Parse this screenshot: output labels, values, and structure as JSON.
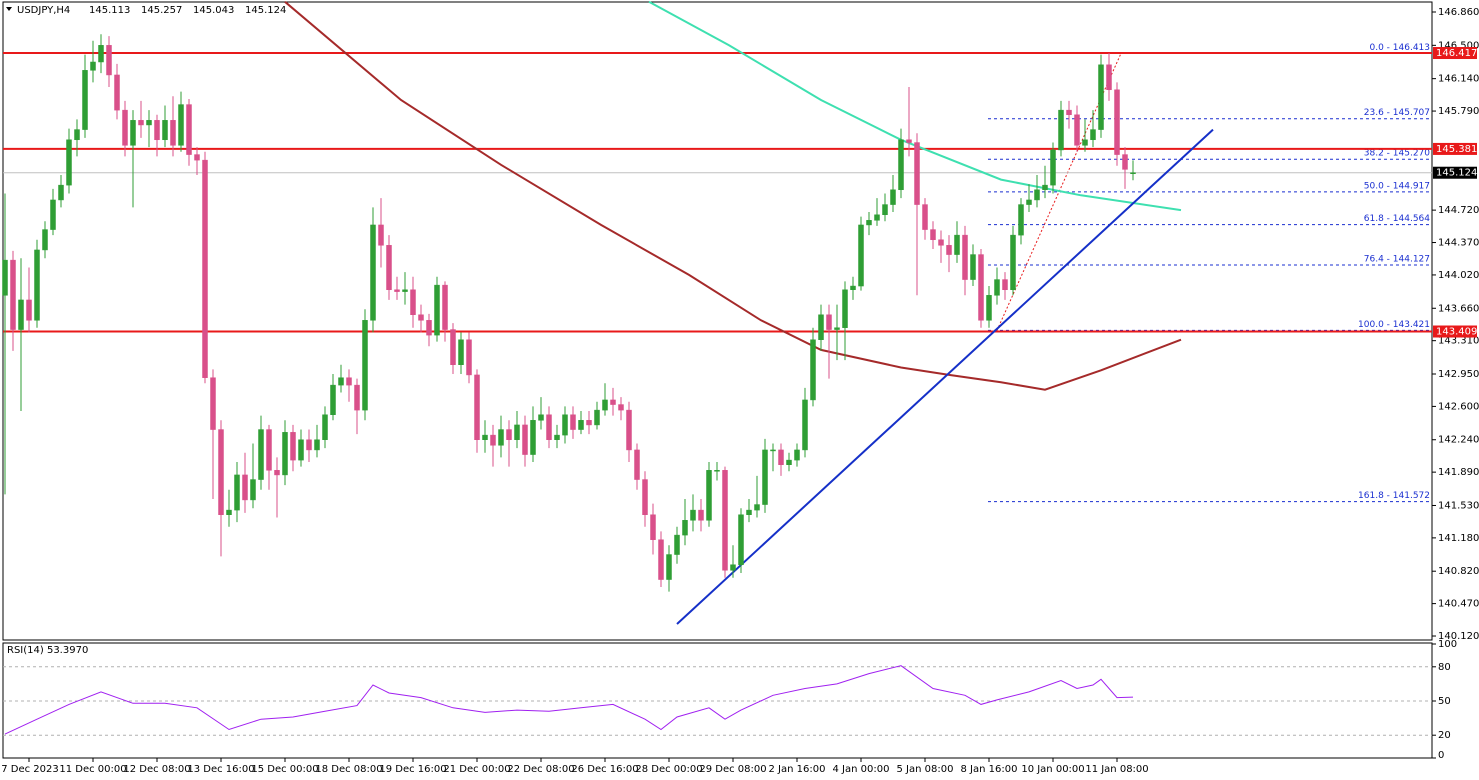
{
  "chart_data": {
    "type": "candlestick",
    "symbol_label": "USDJPY,H4",
    "up_color": "#2f9e35",
    "down_color": "#d9508a",
    "categories": [
      null,
      null,
      null,
      "7 Dec 2023",
      null,
      null,
      null,
      null,
      null,
      null,
      null,
      "11 Dec 00:00",
      null,
      null,
      null,
      null,
      null,
      null,
      null,
      "12 Dec 08:00",
      null,
      null,
      null,
      null,
      null,
      null,
      null,
      "13 Dec 16:00",
      null,
      null,
      null,
      null,
      null,
      null,
      null,
      "15 Dec 00:00",
      null,
      null,
      null,
      null,
      null,
      null,
      null,
      "18 Dec 08:00",
      null,
      null,
      null,
      null,
      null,
      null,
      null,
      "19 Dec 16:00",
      null,
      null,
      null,
      null,
      null,
      null,
      null,
      "21 Dec 00:00",
      null,
      null,
      null,
      null,
      null,
      null,
      null,
      "22 Dec 08:00",
      null,
      null,
      null,
      null,
      null,
      null,
      null,
      "26 Dec 16:00",
      null,
      null,
      null,
      null,
      null,
      null,
      null,
      "28 Dec 00:00",
      null,
      null,
      null,
      null,
      null,
      null,
      null,
      "29 Dec 08:00",
      null,
      null,
      null,
      null,
      null,
      null,
      null,
      "2 Jan 16:00",
      null,
      null,
      null,
      null,
      null,
      null,
      null,
      "4 Jan 00:00",
      null,
      null,
      null,
      null,
      null,
      null,
      null,
      "5 Jan 08:00",
      null,
      null,
      null,
      null,
      null,
      null,
      null,
      "8 Jan 16:00",
      null,
      null,
      null,
      null,
      null,
      null,
      null,
      "10 Jan 00:00",
      null,
      null,
      null,
      null,
      null,
      null,
      null,
      "11 Jan 08:00",
      null,
      null
    ],
    "open": [
      143.8,
      144.18,
      143.43,
      143.75,
      143.53,
      144.29,
      144.51,
      144.83,
      144.99,
      145.48,
      145.59,
      146.23,
      146.32,
      146.5,
      146.18,
      145.8,
      145.42,
      145.69,
      145.64,
      145.69,
      145.48,
      145.69,
      145.42,
      145.86,
      145.32,
      145.26,
      142.91,
      142.35,
      141.43,
      141.48,
      141.86,
      141.59,
      141.81,
      142.35,
      141.91,
      141.86,
      142.32,
      142.02,
      142.24,
      142.13,
      142.24,
      142.51,
      142.83,
      142.91,
      142.83,
      142.56,
      143.53,
      144.56,
      144.34,
      143.86,
      143.84,
      143.86,
      143.59,
      143.53,
      143.37,
      143.91,
      143.43,
      143.05,
      143.32,
      142.94,
      142.24,
      142.29,
      142.18,
      142.35,
      142.24,
      142.4,
      142.08,
      142.45,
      142.51,
      142.24,
      142.29,
      142.51,
      142.35,
      142.45,
      142.4,
      142.56,
      142.67,
      142.62,
      142.56,
      142.13,
      141.81,
      141.43,
      141.16,
      140.73,
      141.0,
      141.21,
      141.37,
      141.48,
      141.37,
      141.91,
      141.91,
      140.83,
      140.89,
      141.43,
      141.48,
      141.54,
      142.13,
      142.13,
      141.97,
      142.02,
      142.13,
      142.67,
      143.32,
      143.59,
      143.43,
      143.45,
      143.86,
      143.9,
      144.56,
      144.61,
      144.67,
      144.78,
      144.94,
      145.48,
      145.45,
      144.78,
      144.51,
      144.4,
      144.34,
      144.24,
      144.45,
      143.97,
      144.24,
      143.53,
      143.8,
      143.97,
      143.86,
      144.45,
      144.78,
      144.83,
      144.94,
      144.99,
      145.37,
      145.8,
      145.75,
      145.42,
      145.48,
      145.59,
      146.29,
      146.02,
      145.32,
      145.113
    ],
    "high": [
      144.9,
      144.28,
      144.2,
      144.1,
      144.4,
      144.6,
      144.95,
      145.1,
      145.6,
      145.7,
      146.4,
      146.55,
      146.62,
      146.6,
      146.3,
      145.9,
      145.8,
      145.9,
      145.8,
      145.75,
      145.85,
      145.95,
      146.0,
      145.92,
      145.4,
      145.35,
      143.0,
      142.45,
      141.7,
      142.0,
      142.1,
      142.2,
      142.5,
      142.4,
      142.05,
      142.45,
      142.4,
      142.35,
      142.35,
      142.4,
      142.6,
      142.95,
      143.05,
      143.0,
      142.9,
      143.65,
      144.75,
      144.85,
      144.45,
      144.0,
      144.05,
      144.0,
      143.7,
      143.6,
      144.0,
      143.95,
      143.5,
      143.4,
      143.4,
      143.0,
      142.45,
      142.4,
      142.5,
      142.45,
      142.55,
      142.5,
      142.6,
      142.7,
      142.6,
      142.4,
      142.6,
      142.6,
      142.55,
      142.55,
      142.65,
      142.85,
      142.8,
      142.7,
      142.65,
      142.2,
      141.9,
      141.55,
      141.25,
      141.1,
      141.3,
      141.6,
      141.65,
      141.6,
      142.0,
      142.0,
      141.95,
      141.1,
      141.5,
      141.6,
      141.85,
      142.25,
      142.2,
      142.2,
      142.1,
      142.2,
      142.8,
      143.45,
      143.7,
      143.7,
      143.7,
      143.95,
      144.0,
      144.65,
      144.7,
      144.85,
      144.9,
      145.1,
      145.6,
      146.05,
      145.55,
      144.85,
      144.6,
      144.5,
      144.45,
      144.6,
      144.55,
      144.35,
      144.3,
      143.9,
      144.1,
      144.05,
      144.55,
      144.85,
      145.0,
      145.1,
      145.2,
      145.45,
      145.9,
      145.9,
      145.85,
      145.7,
      145.8,
      146.4,
      146.417,
      146.1,
      145.4,
      145.257
    ],
    "low": [
      141.65,
      143.2,
      142.55,
      143.4,
      143.45,
      144.2,
      144.45,
      144.75,
      144.9,
      145.3,
      145.5,
      146.1,
      146.2,
      146.05,
      145.7,
      145.3,
      144.75,
      145.5,
      145.4,
      145.3,
      145.4,
      145.3,
      145.35,
      145.2,
      145.1,
      142.85,
      141.6,
      140.98,
      141.3,
      141.35,
      141.45,
      141.5,
      141.7,
      141.7,
      141.4,
      141.75,
      141.9,
      141.95,
      142.0,
      142.05,
      142.15,
      142.45,
      142.75,
      142.65,
      142.3,
      142.45,
      143.4,
      144.1,
      143.75,
      143.75,
      143.7,
      143.45,
      143.4,
      143.25,
      143.3,
      143.3,
      142.95,
      142.95,
      142.85,
      142.1,
      142.1,
      141.95,
      142.05,
      141.95,
      142.15,
      141.95,
      142.0,
      142.35,
      142.15,
      142.15,
      142.2,
      142.25,
      142.3,
      142.3,
      142.35,
      142.5,
      142.5,
      142.45,
      142.0,
      141.7,
      141.3,
      141.0,
      140.65,
      140.6,
      140.9,
      141.1,
      141.25,
      141.25,
      141.3,
      141.8,
      140.75,
      140.75,
      140.8,
      141.35,
      141.4,
      141.45,
      141.9,
      141.85,
      141.9,
      141.95,
      142.05,
      142.6,
      143.2,
      142.9,
      143.1,
      143.1,
      143.75,
      143.85,
      144.45,
      144.55,
      144.6,
      144.7,
      144.85,
      145.3,
      143.8,
      144.4,
      144.3,
      144.15,
      144.05,
      144.15,
      143.8,
      143.9,
      143.45,
      143.45,
      143.7,
      143.75,
      143.8,
      144.35,
      144.7,
      144.75,
      144.85,
      144.9,
      145.3,
      145.6,
      145.35,
      145.35,
      145.4,
      145.5,
      145.9,
      145.2,
      144.95,
      145.043
    ],
    "close": [
      144.18,
      143.43,
      143.75,
      143.53,
      144.29,
      144.51,
      144.83,
      144.99,
      145.48,
      145.59,
      146.23,
      146.32,
      146.5,
      146.18,
      145.8,
      145.42,
      145.69,
      145.64,
      145.69,
      145.48,
      145.69,
      145.42,
      145.86,
      145.32,
      145.26,
      142.91,
      142.35,
      141.43,
      141.48,
      141.86,
      141.59,
      141.81,
      142.35,
      141.91,
      141.86,
      142.32,
      142.02,
      142.24,
      142.13,
      142.24,
      142.51,
      142.83,
      142.91,
      142.83,
      142.56,
      143.53,
      144.56,
      144.34,
      143.86,
      143.84,
      143.86,
      143.59,
      143.53,
      143.37,
      143.91,
      143.43,
      143.05,
      143.32,
      142.94,
      142.24,
      142.29,
      142.18,
      142.35,
      142.24,
      142.4,
      142.08,
      142.45,
      142.51,
      142.24,
      142.29,
      142.51,
      142.35,
      142.45,
      142.4,
      142.56,
      142.67,
      142.62,
      142.56,
      142.13,
      141.81,
      141.43,
      141.16,
      140.73,
      141.0,
      141.21,
      141.37,
      141.48,
      141.37,
      141.91,
      141.91,
      140.83,
      140.89,
      141.43,
      141.48,
      141.54,
      142.13,
      142.13,
      141.97,
      142.02,
      142.13,
      142.67,
      143.32,
      143.59,
      143.43,
      143.45,
      143.86,
      143.9,
      144.56,
      144.61,
      144.67,
      144.78,
      144.94,
      145.48,
      145.45,
      144.78,
      144.51,
      144.4,
      144.34,
      144.24,
      144.45,
      143.97,
      144.24,
      143.53,
      143.8,
      143.97,
      143.86,
      144.45,
      144.78,
      144.83,
      144.94,
      144.99,
      145.37,
      145.8,
      145.75,
      145.42,
      145.48,
      145.59,
      146.29,
      146.02,
      145.32,
      145.16,
      145.124
    ],
    "ylim": [
      140.077,
      146.968
    ],
    "yticks": [
      {
        "value": 146.86,
        "label": "146.860"
      },
      {
        "value": 146.5,
        "label": "146.500"
      },
      {
        "value": 146.14,
        "label": "146.140"
      },
      {
        "value": 145.79,
        "label": "145.790"
      },
      {
        "value": 144.72,
        "label": "144.720"
      },
      {
        "value": 144.37,
        "label": "144.370"
      },
      {
        "value": 144.02,
        "label": "144.020"
      },
      {
        "value": 143.66,
        "label": "143.660"
      },
      {
        "value": 143.31,
        "label": "143.310"
      },
      {
        "value": 142.95,
        "label": "142.950"
      },
      {
        "value": 142.6,
        "label": "142.600"
      },
      {
        "value": 142.24,
        "label": "142.240"
      },
      {
        "value": 141.89,
        "label": "141.890"
      },
      {
        "value": 141.53,
        "label": "141.530"
      },
      {
        "value": 141.18,
        "label": "141.180"
      },
      {
        "value": 140.82,
        "label": "140.820"
      },
      {
        "value": 140.47,
        "label": "140.470"
      },
      {
        "value": 140.12,
        "label": "140.120"
      }
    ],
    "overlays": [
      {
        "type": "line",
        "color": "#a52a2a",
        "x": [
          35,
          49.5,
          62,
          74.5,
          85.5,
          94.5,
          102,
          112,
          118,
          124.5,
          130,
          137,
          147
        ],
        "values": [
          146.97,
          145.91,
          145.21,
          144.56,
          144.02,
          143.53,
          143.21,
          143.02,
          142.94,
          142.86,
          142.78,
          142.99,
          143.32
        ]
      },
      {
        "type": "line",
        "color": "#3ee0b0",
        "x": [
          80.5,
          90.5,
          102,
          112,
          124.5,
          134.5,
          147
        ],
        "values": [
          146.97,
          146.5,
          145.91,
          145.48,
          145.05,
          144.88,
          144.72
        ]
      },
      {
        "type": "line",
        "color": "#1530c8",
        "x": [
          84,
          151
        ],
        "values": [
          140.25,
          145.59
        ]
      }
    ],
    "levels": [
      {
        "value": 146.417,
        "color": "#e8191a"
      },
      {
        "value": 145.381,
        "color": "#e8191a"
      },
      {
        "value": 143.409,
        "color": "#e8191a"
      }
    ],
    "fib_color": "#1a2fd0",
    "fib_levels": [
      {
        "label": "0.0 - 146.413",
        "value": 146.413
      },
      {
        "label": "23.6 - 145.707",
        "value": 145.707
      },
      {
        "label": "38.2 - 145.270",
        "value": 145.27
      },
      {
        "label": "50.0 - 144.917",
        "value": 144.917
      },
      {
        "label": "61.8 - 144.564",
        "value": 144.564
      },
      {
        "label": "76.4 - 144.127",
        "value": 144.127
      },
      {
        "label": "100.0 - 143.421",
        "value": 143.421
      },
      {
        "label": "161.8 - 141.572",
        "value": 141.572
      }
    ],
    "rsi": {
      "label": "RSI(14) 53.3970",
      "color": "#a020f0",
      "ylim": [
        0,
        100
      ],
      "yticks": [
        100,
        80,
        50,
        20,
        0
      ],
      "levels": [
        80,
        50,
        20
      ],
      "x": [
        0,
        4,
        8,
        12,
        16,
        20,
        24,
        28,
        32,
        36,
        40,
        44,
        46,
        48,
        52,
        56,
        60,
        64,
        68,
        72,
        76,
        80,
        82,
        84,
        88,
        90,
        92,
        96,
        100,
        104,
        108,
        112,
        116,
        120,
        122,
        124,
        128,
        132,
        134,
        136,
        137,
        139,
        141
      ],
      "values": [
        21,
        34,
        47,
        58,
        48,
        48,
        44,
        25,
        34,
        36,
        41,
        46,
        64,
        57,
        53,
        44,
        40,
        42,
        41,
        44,
        47,
        34,
        25,
        36,
        44,
        34,
        42,
        55,
        61,
        65,
        74,
        81,
        61,
        55,
        47,
        51,
        58,
        68,
        61,
        64,
        69,
        53,
        53.397
      ]
    }
  }
}
